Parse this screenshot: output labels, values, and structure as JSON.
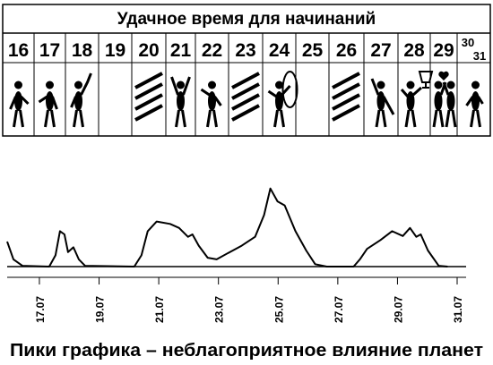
{
  "header": {
    "title": "Удачное время для начинаний",
    "days": [
      "16",
      "17",
      "18",
      "19",
      "20",
      "21",
      "22",
      "23",
      "24",
      "25",
      "26",
      "27",
      "28",
      "29",
      "30",
      "31"
    ]
  },
  "chart_data": {
    "type": "line",
    "color": "#000000",
    "x": [
      15.92,
      16.13,
      16.43,
      17.33,
      17.54,
      17.69,
      17.84,
      17.96,
      18.14,
      18.32,
      18.53,
      20.18,
      20.42,
      20.63,
      20.93,
      21.38,
      21.68,
      21.98,
      22.13,
      22.34,
      22.64,
      22.94,
      23.33,
      23.78,
      24.23,
      24.53,
      24.74,
      24.98,
      25.22,
      25.58,
      25.94,
      26.24,
      26.63,
      27.53,
      27.74,
      27.98,
      28.43,
      28.82,
      29.18,
      29.42,
      29.63,
      29.78,
      30.02,
      30.38,
      30.68
    ],
    "values": [
      31,
      9,
      1,
      0,
      14,
      44,
      40,
      18,
      24,
      9,
      1,
      0,
      14,
      44,
      56,
      53,
      48,
      37,
      40,
      26,
      11,
      9,
      17,
      26,
      37,
      64,
      97,
      81,
      76,
      44,
      20,
      3,
      0,
      0,
      9,
      22,
      33,
      44,
      38,
      48,
      37,
      40,
      20,
      1,
      0
    ],
    "xlim": [
      15.92,
      31.3
    ],
    "ylim": [
      0,
      100
    ],
    "xticks": [
      {
        "value": 17,
        "label": "17.07"
      },
      {
        "value": 19,
        "label": "19.07"
      },
      {
        "value": 21,
        "label": "21.07"
      },
      {
        "value": 23,
        "label": "23.07"
      },
      {
        "value": 25,
        "label": "25.07"
      },
      {
        "value": 27,
        "label": "27.07"
      },
      {
        "value": 29,
        "label": "29.07"
      },
      {
        "value": 31,
        "label": "31.07"
      }
    ],
    "caption": "Пики графика – неблагоприятное влияние планет"
  }
}
